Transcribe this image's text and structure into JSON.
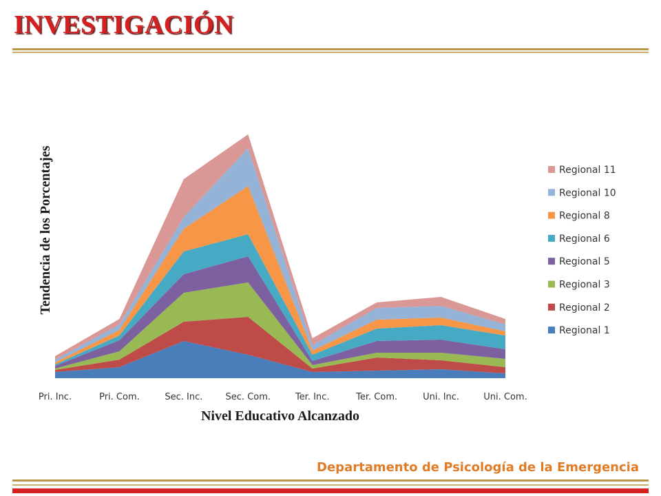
{
  "slide": {
    "title": "INVESTIGACIÓN",
    "footer": "Departamento de Psicología de la Emergencia"
  },
  "colors": {
    "title": "#d42020",
    "footer": "#e07b26",
    "accent_rule": "#b89548",
    "bottom_bar": "#d42020"
  },
  "chart_data": {
    "type": "area",
    "stacked": true,
    "xlabel": "Nivel Educativo Alcanzado",
    "ylabel": "Tendencia de los Porcentajes",
    "categories": [
      "Pri. Inc.",
      "Pri. Com.",
      "Sec. Inc.",
      "Sec. Com.",
      "Ter. Inc.",
      "Ter. Com.",
      "Uni. Inc.",
      "Uni. Com."
    ],
    "ylim": [
      0,
      355
    ],
    "grid": false,
    "legend": "right",
    "series": [
      {
        "name": "Regional 1",
        "color": "#4a7ebb",
        "values": [
          9,
          16,
          54,
          34,
          9,
          11,
          13,
          7
        ]
      },
      {
        "name": "Regional 2",
        "color": "#be4b48",
        "values": [
          3,
          11,
          28,
          55,
          5,
          19,
          13,
          9
        ]
      },
      {
        "name": "Regional 3",
        "color": "#98b954",
        "values": [
          2,
          12,
          42,
          50,
          5,
          7,
          11,
          12
        ]
      },
      {
        "name": "Regional 5",
        "color": "#7d60a0",
        "values": [
          4,
          16,
          27,
          38,
          6,
          17,
          19,
          14
        ]
      },
      {
        "name": "Regional 6",
        "color": "#46aac5",
        "values": [
          2,
          7,
          33,
          32,
          9,
          18,
          21,
          20
        ]
      },
      {
        "name": "Regional 8",
        "color": "#f79646",
        "values": [
          3,
          8,
          33,
          70,
          6,
          13,
          11,
          6
        ]
      },
      {
        "name": "Regional 10",
        "color": "#95b3d7",
        "values": [
          4,
          8,
          17,
          55,
          8,
          17,
          17,
          10
        ]
      },
      {
        "name": "Regional 11",
        "color": "#d99795",
        "values": [
          5,
          8,
          55,
          20,
          10,
          8,
          13,
          8
        ]
      }
    ]
  }
}
